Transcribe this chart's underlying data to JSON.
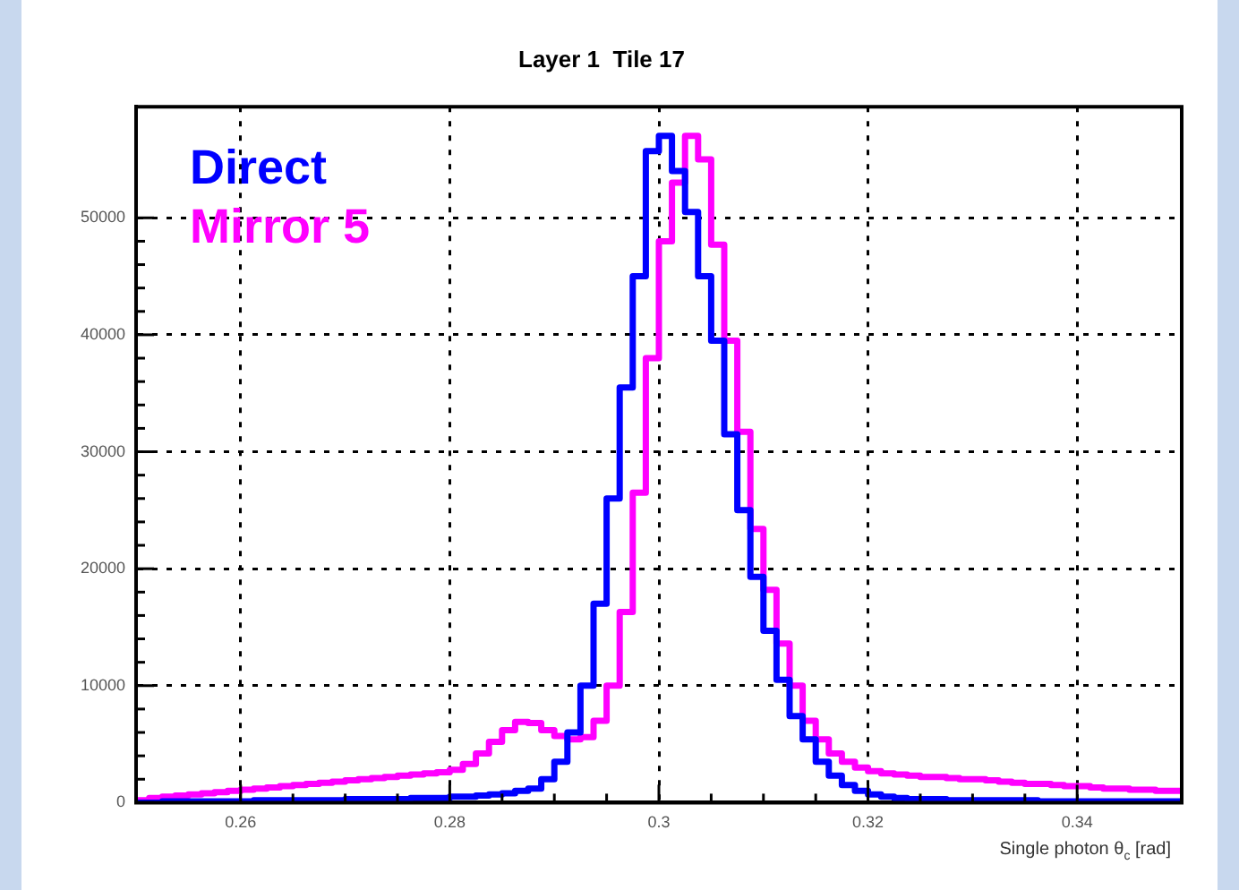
{
  "chart_data": {
    "type": "histogram",
    "title": "Layer 1  Tile 17",
    "xlabel": "Single photon θ$_{c}$ [rad]",
    "bins": [
      0.25,
      0.25125,
      0.2525,
      0.25375,
      0.255,
      0.25625,
      0.2575,
      0.25875,
      0.26,
      0.26125,
      0.2625,
      0.26375,
      0.265,
      0.26625,
      0.2675,
      0.26875,
      0.27,
      0.27125,
      0.2725,
      0.27375,
      0.275,
      0.27625,
      0.2775,
      0.27875,
      0.28,
      0.28125,
      0.2825,
      0.28375,
      0.285,
      0.28625,
      0.2875,
      0.28875,
      0.29,
      0.29125,
      0.2925,
      0.29375,
      0.295,
      0.29625,
      0.2975,
      0.29875,
      0.3,
      0.30125,
      0.3025,
      0.30375,
      0.305,
      0.30625,
      0.3075,
      0.30875,
      0.31,
      0.31125,
      0.3125,
      0.31375,
      0.315,
      0.31625,
      0.3175,
      0.31875,
      0.32,
      0.32125,
      0.3225,
      0.32375,
      0.325,
      0.32625,
      0.3275,
      0.32875,
      0.33,
      0.33125,
      0.3325,
      0.33375,
      0.335,
      0.33625,
      0.3375,
      0.33875,
      0.34,
      0.34125,
      0.3425,
      0.34375,
      0.345,
      0.34625,
      0.3475,
      0.34875,
      0.35
    ],
    "series": [
      {
        "name": "Direct",
        "color": "#0000ff",
        "values": [
          0,
          0,
          100,
          100,
          100,
          100,
          100,
          100,
          100,
          200,
          200,
          200,
          200,
          200,
          200,
          200,
          300,
          300,
          300,
          300,
          300,
          400,
          400,
          400,
          500,
          500,
          600,
          700,
          800,
          1000,
          1200,
          2000,
          3500,
          6000,
          10000,
          17000,
          26000,
          35500,
          45000,
          55700,
          57000,
          54000,
          50500,
          45000,
          39500,
          31500,
          25000,
          19300,
          14700,
          10500,
          7400,
          5400,
          3500,
          2300,
          1500,
          1000,
          700,
          500,
          400,
          300,
          300,
          300,
          200,
          200,
          200,
          200,
          200,
          200,
          200,
          100,
          100,
          100,
          100,
          100,
          100,
          100,
          100,
          100,
          100,
          100
        ]
      },
      {
        "name": "Mirror 5",
        "color": "#ff00ff",
        "values": [
          200,
          400,
          500,
          600,
          700,
          800,
          900,
          1000,
          1100,
          1200,
          1300,
          1400,
          1500,
          1600,
          1700,
          1800,
          1900,
          2000,
          2100,
          2200,
          2300,
          2400,
          2500,
          2600,
          2800,
          3300,
          4200,
          5200,
          6200,
          6900,
          6800,
          6200,
          5700,
          5400,
          5600,
          7000,
          10000,
          16300,
          26500,
          38000,
          48000,
          53000,
          57000,
          55000,
          47700,
          39500,
          31700,
          23400,
          18200,
          13600,
          10000,
          7000,
          5400,
          4200,
          3500,
          3000,
          2700,
          2500,
          2400,
          2300,
          2200,
          2200,
          2100,
          2000,
          2000,
          1900,
          1800,
          1700,
          1600,
          1600,
          1500,
          1400,
          1400,
          1300,
          1200,
          1200,
          1100,
          1100,
          1000,
          1000
        ]
      }
    ],
    "xlim": [
      0.25,
      0.35
    ],
    "xticks": [
      0.26,
      0.28,
      0.3,
      0.32,
      0.34
    ],
    "ylim": [
      0,
      59500
    ],
    "yticks": [
      0,
      10000,
      20000,
      30000,
      40000,
      50000
    ],
    "grid": true,
    "legend": "top left"
  }
}
